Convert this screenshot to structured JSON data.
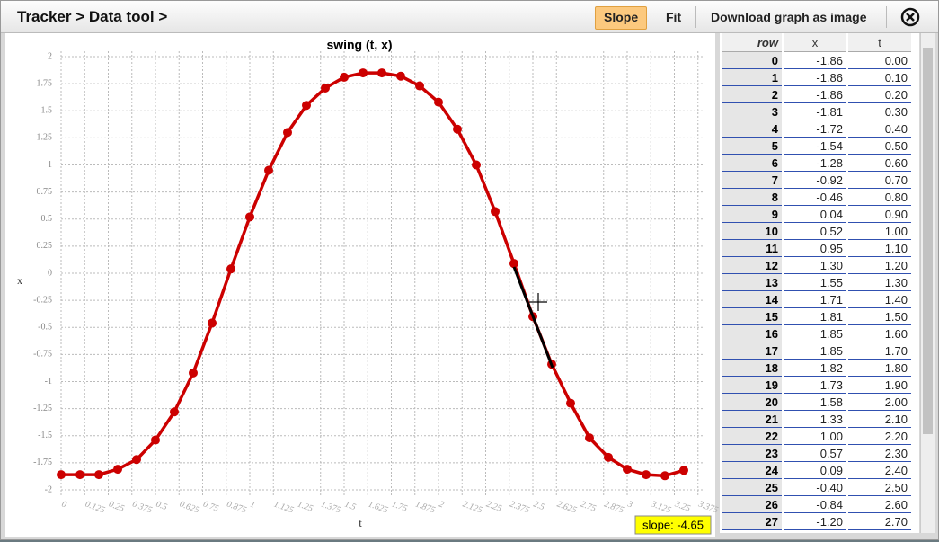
{
  "header": {
    "breadcrumb": "Tracker > Data tool >",
    "buttons": [
      "Slope",
      "Fit",
      "Download graph as image"
    ]
  },
  "chart_data": {
    "type": "line",
    "title": "swing (t, x)",
    "x_label": "t",
    "y_label": "x",
    "x": [
      0,
      0.1,
      0.2,
      0.3,
      0.4,
      0.5,
      0.6,
      0.7,
      0.8,
      0.9,
      1.0,
      1.1,
      1.2,
      1.3,
      1.4,
      1.5,
      1.6,
      1.7,
      1.8,
      1.9,
      2.0,
      2.1,
      2.2,
      2.3,
      2.4,
      2.5,
      2.6,
      2.7,
      2.8,
      2.9,
      3.0,
      3.1,
      3.2,
      3.3
    ],
    "values": [
      -1.86,
      -1.86,
      -1.86,
      -1.81,
      -1.72,
      -1.54,
      -1.28,
      -0.92,
      -0.46,
      0.04,
      0.52,
      0.95,
      1.3,
      1.55,
      1.71,
      1.81,
      1.85,
      1.85,
      1.82,
      1.73,
      1.58,
      1.33,
      1.0,
      0.57,
      0.09,
      -0.4,
      -0.84,
      -1.2,
      -1.52,
      -1.7,
      -1.81,
      -1.86,
      -1.87,
      -1.82
    ],
    "color": "#cc0000",
    "markers": true,
    "xlim": [
      0,
      3.4
    ],
    "ylim": [
      -2.05,
      2.05
    ],
    "xticks": [
      0,
      0.125,
      0.25,
      0.375,
      0.5,
      0.625,
      0.75,
      0.875,
      1,
      1.125,
      1.25,
      1.375,
      1.5,
      1.625,
      1.75,
      1.875,
      2,
      2.125,
      2.25,
      2.375,
      2.5,
      2.625,
      2.75,
      2.875,
      3,
      3.125,
      3.25,
      3.375
    ],
    "yticks": [
      -2,
      -1.75,
      -1.5,
      -1.25,
      -1,
      -0.75,
      -0.5,
      -0.25,
      0,
      0.25,
      0.5,
      0.75,
      1,
      1.25,
      1.5,
      1.75,
      2
    ],
    "grid": true
  },
  "slope_label": "slope: -4.65",
  "table": {
    "columns": [
      "row",
      "x",
      "t"
    ],
    "rows": [
      [
        "0",
        "-1.86",
        "0.00"
      ],
      [
        "1",
        "-1.86",
        "0.10"
      ],
      [
        "2",
        "-1.86",
        "0.20"
      ],
      [
        "3",
        "-1.81",
        "0.30"
      ],
      [
        "4",
        "-1.72",
        "0.40"
      ],
      [
        "5",
        "-1.54",
        "0.50"
      ],
      [
        "6",
        "-1.28",
        "0.60"
      ],
      [
        "7",
        "-0.92",
        "0.70"
      ],
      [
        "8",
        "-0.46",
        "0.80"
      ],
      [
        "9",
        "0.04",
        "0.90"
      ],
      [
        "10",
        "0.52",
        "1.00"
      ],
      [
        "11",
        "0.95",
        "1.10"
      ],
      [
        "12",
        "1.30",
        "1.20"
      ],
      [
        "13",
        "1.55",
        "1.30"
      ],
      [
        "14",
        "1.71",
        "1.40"
      ],
      [
        "15",
        "1.81",
        "1.50"
      ],
      [
        "16",
        "1.85",
        "1.60"
      ],
      [
        "17",
        "1.85",
        "1.70"
      ],
      [
        "18",
        "1.82",
        "1.80"
      ],
      [
        "19",
        "1.73",
        "1.90"
      ],
      [
        "20",
        "1.58",
        "2.00"
      ],
      [
        "21",
        "1.33",
        "2.10"
      ],
      [
        "22",
        "1.00",
        "2.20"
      ],
      [
        "23",
        "0.57",
        "2.30"
      ],
      [
        "24",
        "0.09",
        "2.40"
      ],
      [
        "25",
        "-0.40",
        "2.50"
      ],
      [
        "26",
        "-0.84",
        "2.60"
      ],
      [
        "27",
        "-1.20",
        "2.70"
      ]
    ]
  }
}
